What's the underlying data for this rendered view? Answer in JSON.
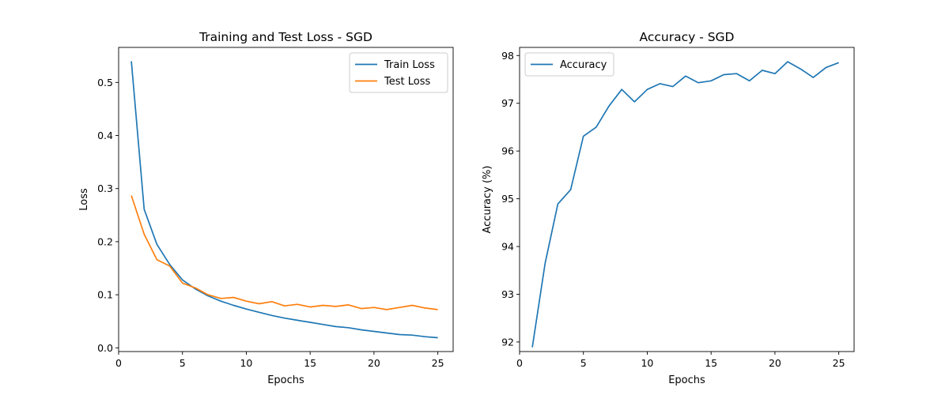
{
  "chart_data": [
    {
      "type": "line",
      "title": "Training and Test Loss - SGD",
      "xlabel": "Epochs",
      "ylabel": "Loss",
      "xlim": [
        0,
        26.2
      ],
      "ylim": [
        -0.007,
        0.566
      ],
      "x_ticks": [
        0,
        5,
        10,
        15,
        20,
        25
      ],
      "x_tick_labels": [
        "0",
        "5",
        "10",
        "15",
        "20",
        "25"
      ],
      "y_ticks": [
        0.0,
        0.1,
        0.2,
        0.3,
        0.4,
        0.5
      ],
      "y_tick_labels": [
        "0.0",
        "0.1",
        "0.2",
        "0.3",
        "0.4",
        "0.5"
      ],
      "legend_position": "upper right",
      "grid": false,
      "x": [
        1,
        2,
        3,
        4,
        5,
        6,
        7,
        8,
        9,
        10,
        11,
        12,
        13,
        14,
        15,
        16,
        17,
        18,
        19,
        20,
        21,
        22,
        23,
        24,
        25
      ],
      "series": [
        {
          "name": "Train Loss",
          "color": "#1f77b4",
          "values": [
            0.54,
            0.261,
            0.195,
            0.157,
            0.128,
            0.111,
            0.098,
            0.088,
            0.08,
            0.073,
            0.067,
            0.061,
            0.056,
            0.052,
            0.048,
            0.044,
            0.04,
            0.038,
            0.034,
            0.031,
            0.028,
            0.025,
            0.024,
            0.021,
            0.019
          ]
        },
        {
          "name": "Test Loss",
          "color": "#ff7f0e",
          "values": [
            0.287,
            0.214,
            0.166,
            0.154,
            0.122,
            0.113,
            0.1,
            0.093,
            0.095,
            0.088,
            0.083,
            0.087,
            0.079,
            0.082,
            0.077,
            0.08,
            0.078,
            0.081,
            0.074,
            0.076,
            0.072,
            0.076,
            0.08,
            0.075,
            0.072
          ]
        }
      ]
    },
    {
      "type": "line",
      "title": "Accuracy - SGD",
      "xlabel": "Epochs",
      "ylabel": "Accuracy (%)",
      "xlim": [
        0,
        26.2
      ],
      "ylim": [
        91.8,
        98.17
      ],
      "x_ticks": [
        0,
        5,
        10,
        15,
        20,
        25
      ],
      "x_tick_labels": [
        "0",
        "5",
        "10",
        "15",
        "20",
        "25"
      ],
      "y_ticks": [
        92,
        93,
        94,
        95,
        96,
        97,
        98
      ],
      "y_tick_labels": [
        "92",
        "93",
        "94",
        "95",
        "96",
        "97",
        "98"
      ],
      "legend_position": "upper left",
      "grid": false,
      "x": [
        1,
        2,
        3,
        4,
        5,
        6,
        7,
        8,
        9,
        10,
        11,
        12,
        13,
        14,
        15,
        16,
        17,
        18,
        19,
        20,
        21,
        22,
        23,
        24,
        25
      ],
      "series": [
        {
          "name": "Accuracy",
          "color": "#1f77b4",
          "values": [
            91.89,
            93.65,
            94.89,
            95.19,
            96.31,
            96.5,
            96.94,
            97.29,
            97.03,
            97.29,
            97.41,
            97.35,
            97.57,
            97.43,
            97.47,
            97.6,
            97.62,
            97.47,
            97.69,
            97.62,
            97.87,
            97.72,
            97.54,
            97.75,
            97.85
          ]
        }
      ]
    }
  ]
}
